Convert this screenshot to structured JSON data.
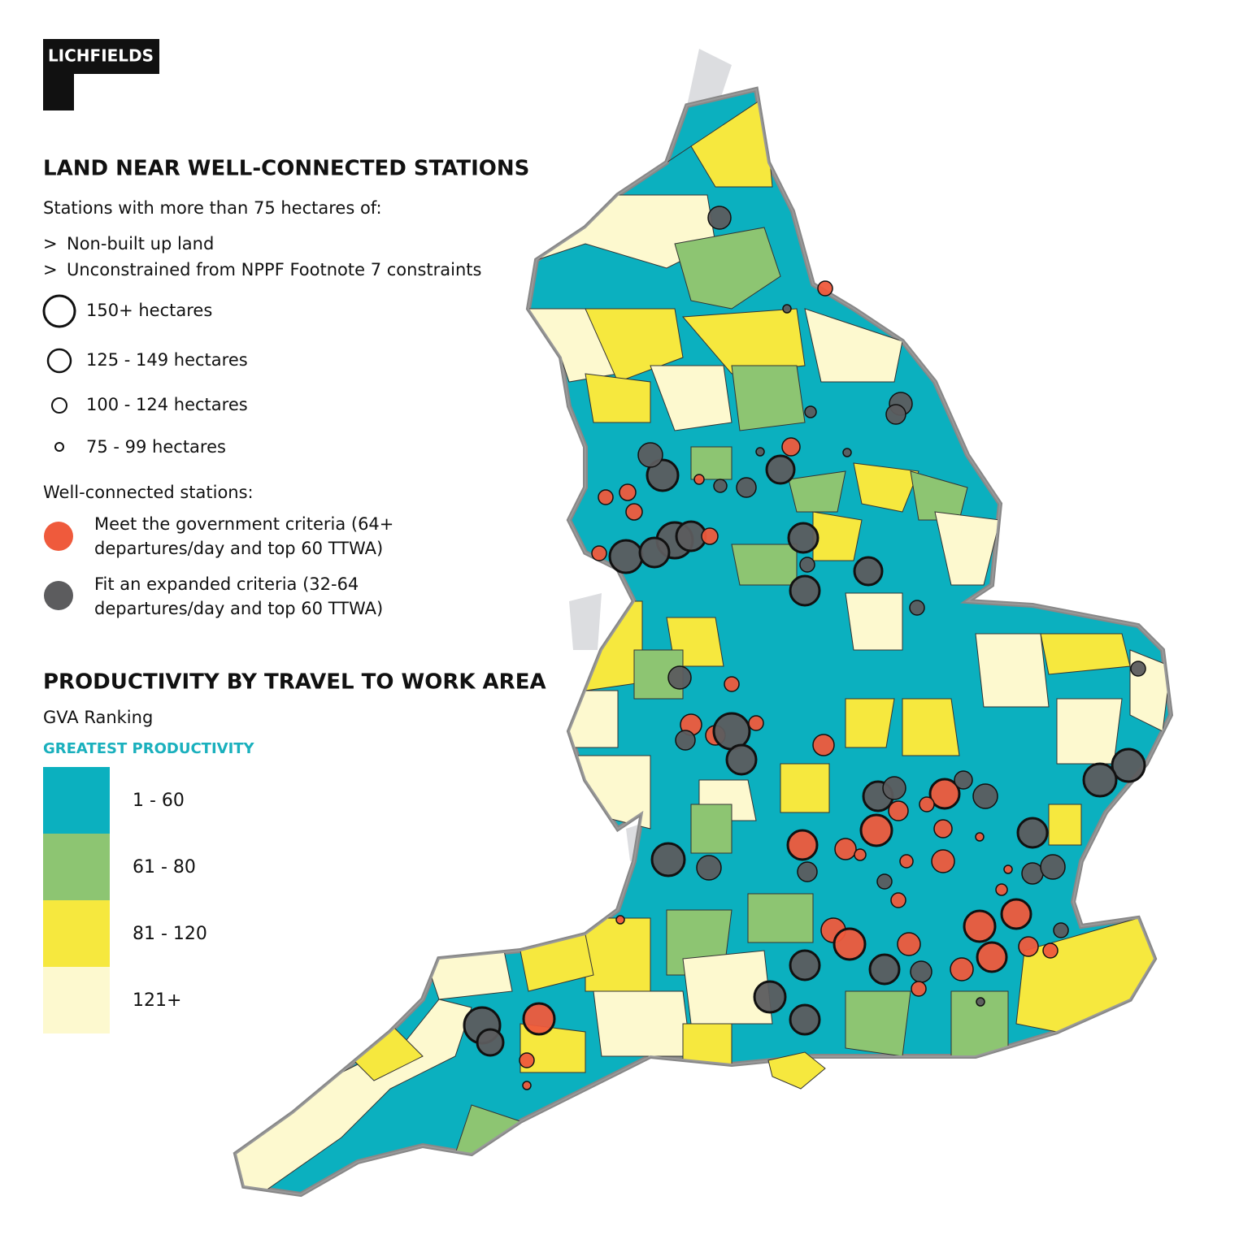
{
  "logo": "LICHFIELDS",
  "stations": {
    "title": "LAND NEAR WELL-CONNECTED STATIONS",
    "subtitle": "Stations with more than 75 hectares of:",
    "bullet": ">",
    "criteria": [
      "Non-built up land",
      "Unconstrained from NPPF Footnote 7 constraints"
    ],
    "sizes": [
      "150+ hectares",
      "125 - 149 hectares",
      "100 - 124 hectares",
      "75 - 99 hectares"
    ],
    "connected_title": "Well-connected stations:",
    "types": [
      {
        "lines": [
          "Meet the government criteria (64+",
          "departures/day and top 60 TTWA)"
        ],
        "color": "#ef5a3c"
      },
      {
        "lines": [
          "Fit an expanded criteria (32-64",
          "departures/day and top 60 TTWA)"
        ],
        "color": "#5c5c5e"
      }
    ]
  },
  "productivity": {
    "title": "PRODUCTIVITY BY TRAVEL TO WORK AREA",
    "subtitle": "GVA Ranking",
    "top_label": "GREATEST PRODUCTIVITY",
    "bands": [
      {
        "label": "1 - 60",
        "color": "#0bb0bf"
      },
      {
        "label": "61 - 80",
        "color": "#8dc572"
      },
      {
        "label": "81 - 120",
        "color": "#f6e83e"
      },
      {
        "label": "121+",
        "color": "#fdf9cf"
      }
    ]
  }
}
